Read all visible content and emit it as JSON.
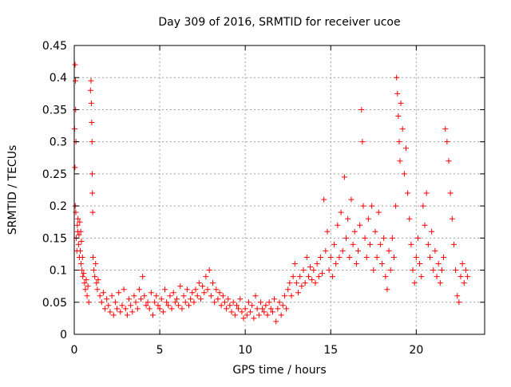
{
  "chart_data": {
    "type": "scatter",
    "title": "Day 309 of 2016, SRMTID for receiver ucoe",
    "xlabel": "GPS time / hours",
    "ylabel": "SRMTID / TECUs",
    "xlim": [
      0,
      24
    ],
    "ylim": [
      0,
      0.45
    ],
    "xticks": [
      0,
      5,
      10,
      15,
      20
    ],
    "xtick_labels": [
      "0",
      "5",
      "10",
      "15",
      "20"
    ],
    "yticks": [
      0,
      0.05,
      0.1,
      0.15,
      0.2,
      0.25,
      0.3,
      0.35,
      0.4,
      0.45
    ],
    "ytick_labels": [
      "0",
      "0.05",
      "0.1",
      "0.15",
      "0.2",
      "0.25",
      "0.3",
      "0.35",
      "0.4",
      "0.45"
    ],
    "grid": true,
    "marker": "plus",
    "color": "#ff0000",
    "series": [
      {
        "name": "SRMTID",
        "points": [
          [
            0.02,
            0.32
          ],
          [
            0.05,
            0.42
          ],
          [
            0.07,
            0.395
          ],
          [
            0.08,
            0.35
          ],
          [
            0.1,
            0.3
          ],
          [
            0.04,
            0.26
          ],
          [
            0.06,
            0.2
          ],
          [
            0.09,
            0.19
          ],
          [
            0.12,
            0.15
          ],
          [
            0.15,
            0.13
          ],
          [
            0.18,
            0.17
          ],
          [
            0.2,
            0.16
          ],
          [
            0.22,
            0.18
          ],
          [
            0.25,
            0.14
          ],
          [
            0.28,
            0.155
          ],
          [
            0.3,
            0.12
          ],
          [
            0.32,
            0.175
          ],
          [
            0.35,
            0.13
          ],
          [
            0.38,
            0.16
          ],
          [
            0.4,
            0.11
          ],
          [
            0.42,
            0.145
          ],
          [
            0.45,
            0.1
          ],
          [
            0.48,
            0.12
          ],
          [
            0.5,
            0.09
          ],
          [
            0.55,
            0.095
          ],
          [
            0.6,
            0.08
          ],
          [
            0.65,
            0.07
          ],
          [
            0.7,
            0.085
          ],
          [
            0.75,
            0.06
          ],
          [
            0.8,
            0.075
          ],
          [
            0.85,
            0.05
          ],
          [
            0.95,
            0.38
          ],
          [
            0.98,
            0.395
          ],
          [
            1.0,
            0.36
          ],
          [
            1.02,
            0.33
          ],
          [
            1.04,
            0.3
          ],
          [
            1.05,
            0.25
          ],
          [
            1.06,
            0.22
          ],
          [
            1.08,
            0.19
          ],
          [
            1.1,
            0.12
          ],
          [
            1.15,
            0.1
          ],
          [
            1.2,
            0.09
          ],
          [
            1.25,
            0.11
          ],
          [
            1.3,
            0.08
          ],
          [
            1.35,
            0.07
          ],
          [
            1.4,
            0.085
          ],
          [
            1.5,
            0.06
          ],
          [
            1.6,
            0.05
          ],
          [
            1.7,
            0.065
          ],
          [
            1.8,
            0.04
          ],
          [
            1.9,
            0.055
          ],
          [
            2.0,
            0.045
          ],
          [
            2.1,
            0.035
          ],
          [
            2.2,
            0.06
          ],
          [
            2.3,
            0.03
          ],
          [
            2.4,
            0.05
          ],
          [
            2.5,
            0.04
          ],
          [
            2.6,
            0.065
          ],
          [
            2.7,
            0.035
          ],
          [
            2.8,
            0.045
          ],
          [
            2.9,
            0.07
          ],
          [
            3.0,
            0.04
          ],
          [
            3.1,
            0.03
          ],
          [
            3.2,
            0.055
          ],
          [
            3.3,
            0.045
          ],
          [
            3.4,
            0.035
          ],
          [
            3.5,
            0.06
          ],
          [
            3.6,
            0.05
          ],
          [
            3.7,
            0.04
          ],
          [
            3.8,
            0.07
          ],
          [
            3.9,
            0.055
          ],
          [
            4.0,
            0.09
          ],
          [
            4.1,
            0.06
          ],
          [
            4.2,
            0.045
          ],
          [
            4.3,
            0.05
          ],
          [
            4.4,
            0.04
          ],
          [
            4.5,
            0.065
          ],
          [
            4.6,
            0.03
          ],
          [
            4.7,
            0.05
          ],
          [
            4.8,
            0.06
          ],
          [
            4.9,
            0.045
          ],
          [
            5.0,
            0.04
          ],
          [
            5.1,
            0.055
          ],
          [
            5.2,
            0.035
          ],
          [
            5.3,
            0.07
          ],
          [
            5.4,
            0.05
          ],
          [
            5.5,
            0.045
          ],
          [
            5.6,
            0.06
          ],
          [
            5.7,
            0.04
          ],
          [
            5.8,
            0.065
          ],
          [
            5.9,
            0.05
          ],
          [
            6.0,
            0.055
          ],
          [
            6.1,
            0.045
          ],
          [
            6.2,
            0.075
          ],
          [
            6.3,
            0.04
          ],
          [
            6.4,
            0.06
          ],
          [
            6.5,
            0.05
          ],
          [
            6.6,
            0.07
          ],
          [
            6.7,
            0.045
          ],
          [
            6.8,
            0.055
          ],
          [
            6.9,
            0.065
          ],
          [
            7.0,
            0.05
          ],
          [
            7.1,
            0.07
          ],
          [
            7.2,
            0.06
          ],
          [
            7.3,
            0.08
          ],
          [
            7.4,
            0.055
          ],
          [
            7.5,
            0.075
          ],
          [
            7.6,
            0.065
          ],
          [
            7.7,
            0.09
          ],
          [
            7.8,
            0.07
          ],
          [
            7.9,
            0.1
          ],
          [
            8.0,
            0.06
          ],
          [
            8.1,
            0.08
          ],
          [
            8.2,
            0.05
          ],
          [
            8.3,
            0.07
          ],
          [
            8.4,
            0.055
          ],
          [
            8.5,
            0.065
          ],
          [
            8.6,
            0.045
          ],
          [
            8.7,
            0.06
          ],
          [
            8.8,
            0.05
          ],
          [
            8.9,
            0.04
          ],
          [
            9.0,
            0.055
          ],
          [
            9.1,
            0.045
          ],
          [
            9.2,
            0.035
          ],
          [
            9.3,
            0.05
          ],
          [
            9.4,
            0.03
          ],
          [
            9.5,
            0.045
          ],
          [
            9.6,
            0.04
          ],
          [
            9.7,
            0.055
          ],
          [
            9.8,
            0.035
          ],
          [
            9.9,
            0.025
          ],
          [
            10.0,
            0.04
          ],
          [
            10.1,
            0.03
          ],
          [
            10.2,
            0.05
          ],
          [
            10.3,
            0.035
          ],
          [
            10.4,
            0.045
          ],
          [
            10.5,
            0.025
          ],
          [
            10.6,
            0.06
          ],
          [
            10.7,
            0.04
          ],
          [
            10.8,
            0.03
          ],
          [
            10.9,
            0.05
          ],
          [
            11.0,
            0.04
          ],
          [
            11.1,
            0.035
          ],
          [
            11.2,
            0.045
          ],
          [
            11.3,
            0.03
          ],
          [
            11.4,
            0.05
          ],
          [
            11.5,
            0.04
          ],
          [
            11.6,
            0.035
          ],
          [
            11.7,
            0.055
          ],
          [
            11.8,
            0.02
          ],
          [
            11.9,
            0.04
          ],
          [
            12.0,
            0.05
          ],
          [
            12.1,
            0.03
          ],
          [
            12.2,
            0.045
          ],
          [
            12.3,
            0.06
          ],
          [
            12.4,
            0.04
          ],
          [
            12.5,
            0.07
          ],
          [
            12.6,
            0.08
          ],
          [
            12.7,
            0.06
          ],
          [
            12.8,
            0.09
          ],
          [
            12.9,
            0.11
          ],
          [
            13.0,
            0.08
          ],
          [
            13.1,
            0.065
          ],
          [
            13.2,
            0.09
          ],
          [
            13.3,
            0.075
          ],
          [
            13.4,
            0.1
          ],
          [
            13.5,
            0.08
          ],
          [
            13.6,
            0.12
          ],
          [
            13.7,
            0.09
          ],
          [
            13.8,
            0.105
          ],
          [
            13.9,
            0.085
          ],
          [
            14.0,
            0.1
          ],
          [
            14.1,
            0.08
          ],
          [
            14.2,
            0.11
          ],
          [
            14.3,
            0.09
          ],
          [
            14.4,
            0.12
          ],
          [
            14.5,
            0.095
          ],
          [
            14.6,
            0.21
          ],
          [
            14.7,
            0.13
          ],
          [
            14.8,
            0.16
          ],
          [
            14.9,
            0.1
          ],
          [
            15.0,
            0.12
          ],
          [
            15.1,
            0.09
          ],
          [
            15.2,
            0.14
          ],
          [
            15.3,
            0.11
          ],
          [
            15.4,
            0.17
          ],
          [
            15.5,
            0.12
          ],
          [
            15.6,
            0.19
          ],
          [
            15.7,
            0.13
          ],
          [
            15.8,
            0.245
          ],
          [
            15.9,
            0.15
          ],
          [
            16.0,
            0.18
          ],
          [
            16.1,
            0.12
          ],
          [
            16.2,
            0.21
          ],
          [
            16.3,
            0.14
          ],
          [
            16.4,
            0.16
          ],
          [
            16.5,
            0.11
          ],
          [
            16.6,
            0.13
          ],
          [
            16.7,
            0.17
          ],
          [
            16.8,
            0.35
          ],
          [
            16.85,
            0.3
          ],
          [
            16.9,
            0.2
          ],
          [
            17.0,
            0.15
          ],
          [
            17.1,
            0.12
          ],
          [
            17.2,
            0.18
          ],
          [
            17.3,
            0.14
          ],
          [
            17.4,
            0.2
          ],
          [
            17.5,
            0.1
          ],
          [
            17.6,
            0.16
          ],
          [
            17.7,
            0.12
          ],
          [
            17.8,
            0.19
          ],
          [
            17.9,
            0.14
          ],
          [
            18.0,
            0.11
          ],
          [
            18.1,
            0.15
          ],
          [
            18.2,
            0.09
          ],
          [
            18.3,
            0.07
          ],
          [
            18.4,
            0.13
          ],
          [
            18.5,
            0.1
          ],
          [
            18.6,
            0.15
          ],
          [
            18.7,
            0.12
          ],
          [
            18.8,
            0.2
          ],
          [
            18.85,
            0.4
          ],
          [
            18.9,
            0.375
          ],
          [
            18.95,
            0.34
          ],
          [
            19.0,
            0.3
          ],
          [
            19.05,
            0.27
          ],
          [
            19.1,
            0.36
          ],
          [
            19.2,
            0.32
          ],
          [
            19.3,
            0.25
          ],
          [
            19.4,
            0.29
          ],
          [
            19.5,
            0.22
          ],
          [
            19.6,
            0.18
          ],
          [
            19.7,
            0.14
          ],
          [
            19.8,
            0.1
          ],
          [
            19.9,
            0.08
          ],
          [
            20.0,
            0.12
          ],
          [
            20.1,
            0.15
          ],
          [
            20.2,
            0.11
          ],
          [
            20.3,
            0.09
          ],
          [
            20.4,
            0.2
          ],
          [
            20.5,
            0.17
          ],
          [
            20.6,
            0.22
          ],
          [
            20.7,
            0.14
          ],
          [
            20.8,
            0.12
          ],
          [
            20.9,
            0.16
          ],
          [
            21.0,
            0.1
          ],
          [
            21.1,
            0.13
          ],
          [
            21.2,
            0.09
          ],
          [
            21.3,
            0.11
          ],
          [
            21.4,
            0.08
          ],
          [
            21.5,
            0.1
          ],
          [
            21.6,
            0.12
          ],
          [
            21.7,
            0.32
          ],
          [
            21.8,
            0.3
          ],
          [
            21.9,
            0.27
          ],
          [
            22.0,
            0.22
          ],
          [
            22.1,
            0.18
          ],
          [
            22.2,
            0.14
          ],
          [
            22.3,
            0.1
          ],
          [
            22.4,
            0.06
          ],
          [
            22.5,
            0.05
          ],
          [
            22.6,
            0.09
          ],
          [
            22.7,
            0.11
          ],
          [
            22.8,
            0.08
          ],
          [
            22.9,
            0.1
          ],
          [
            23.0,
            0.09
          ]
        ]
      }
    ]
  }
}
